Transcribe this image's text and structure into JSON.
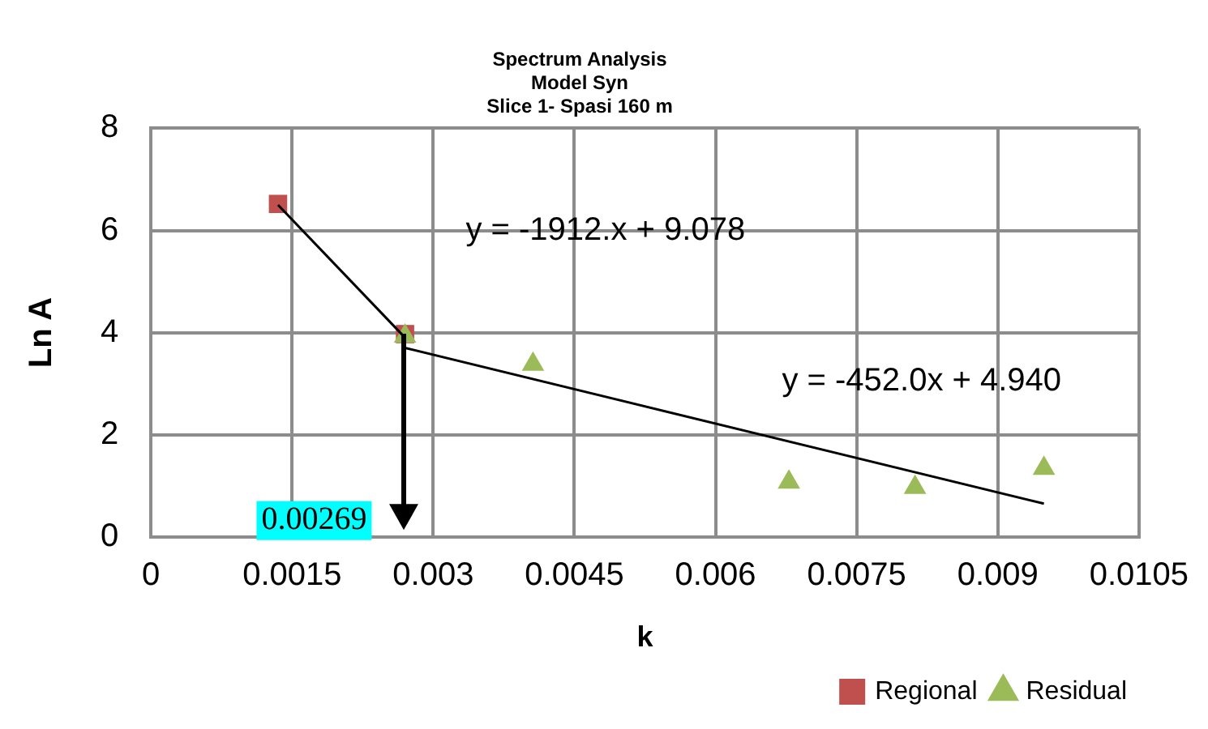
{
  "chart_data": {
    "type": "scatter",
    "title": "Spectrum Analysis\nModel Syn\nSlice 1- Spasi 160 m",
    "xlabel": "k",
    "ylabel": "Ln A",
    "xlim": [
      0,
      0.0105
    ],
    "xticks": [
      0,
      0.0015,
      0.003,
      0.0045,
      0.006,
      0.0075,
      0.009,
      0.0105
    ],
    "ylim": [
      0,
      8
    ],
    "yticks": [
      0,
      2,
      4,
      6,
      8
    ],
    "grid": true,
    "legend": "bottom right",
    "series": [
      {
        "name": "Regional",
        "marker": "square",
        "color": "#c0504d",
        "x": [
          0.00135,
          0.0027
        ],
        "values": [
          6.52,
          3.97
        ]
      },
      {
        "name": "Residual",
        "marker": "triangle",
        "color": "#9bbb59",
        "x": [
          0.0027,
          0.00406,
          0.00678,
          0.00812,
          0.00949
        ],
        "values": [
          3.93,
          3.38,
          1.07,
          0.97,
          1.34
        ]
      },
      {
        "type": "line",
        "marker": "none",
        "color": "#000000",
        "x": [
          0.00135,
          0.0027
        ],
        "values": [
          6.5,
          3.9
        ]
      },
      {
        "type": "line",
        "marker": "none",
        "color": "#000000",
        "x": [
          0.0027,
          0.00949
        ],
        "values": [
          3.7,
          0.65
        ]
      }
    ],
    "ref_lines": [
      {
        "axis": "x",
        "value": 0.00269,
        "label": "0.00269",
        "color": "#000000"
      }
    ],
    "annotations": [
      "y = -1912.x + 9.078",
      "y = -452.0x + 4.940"
    ]
  }
}
